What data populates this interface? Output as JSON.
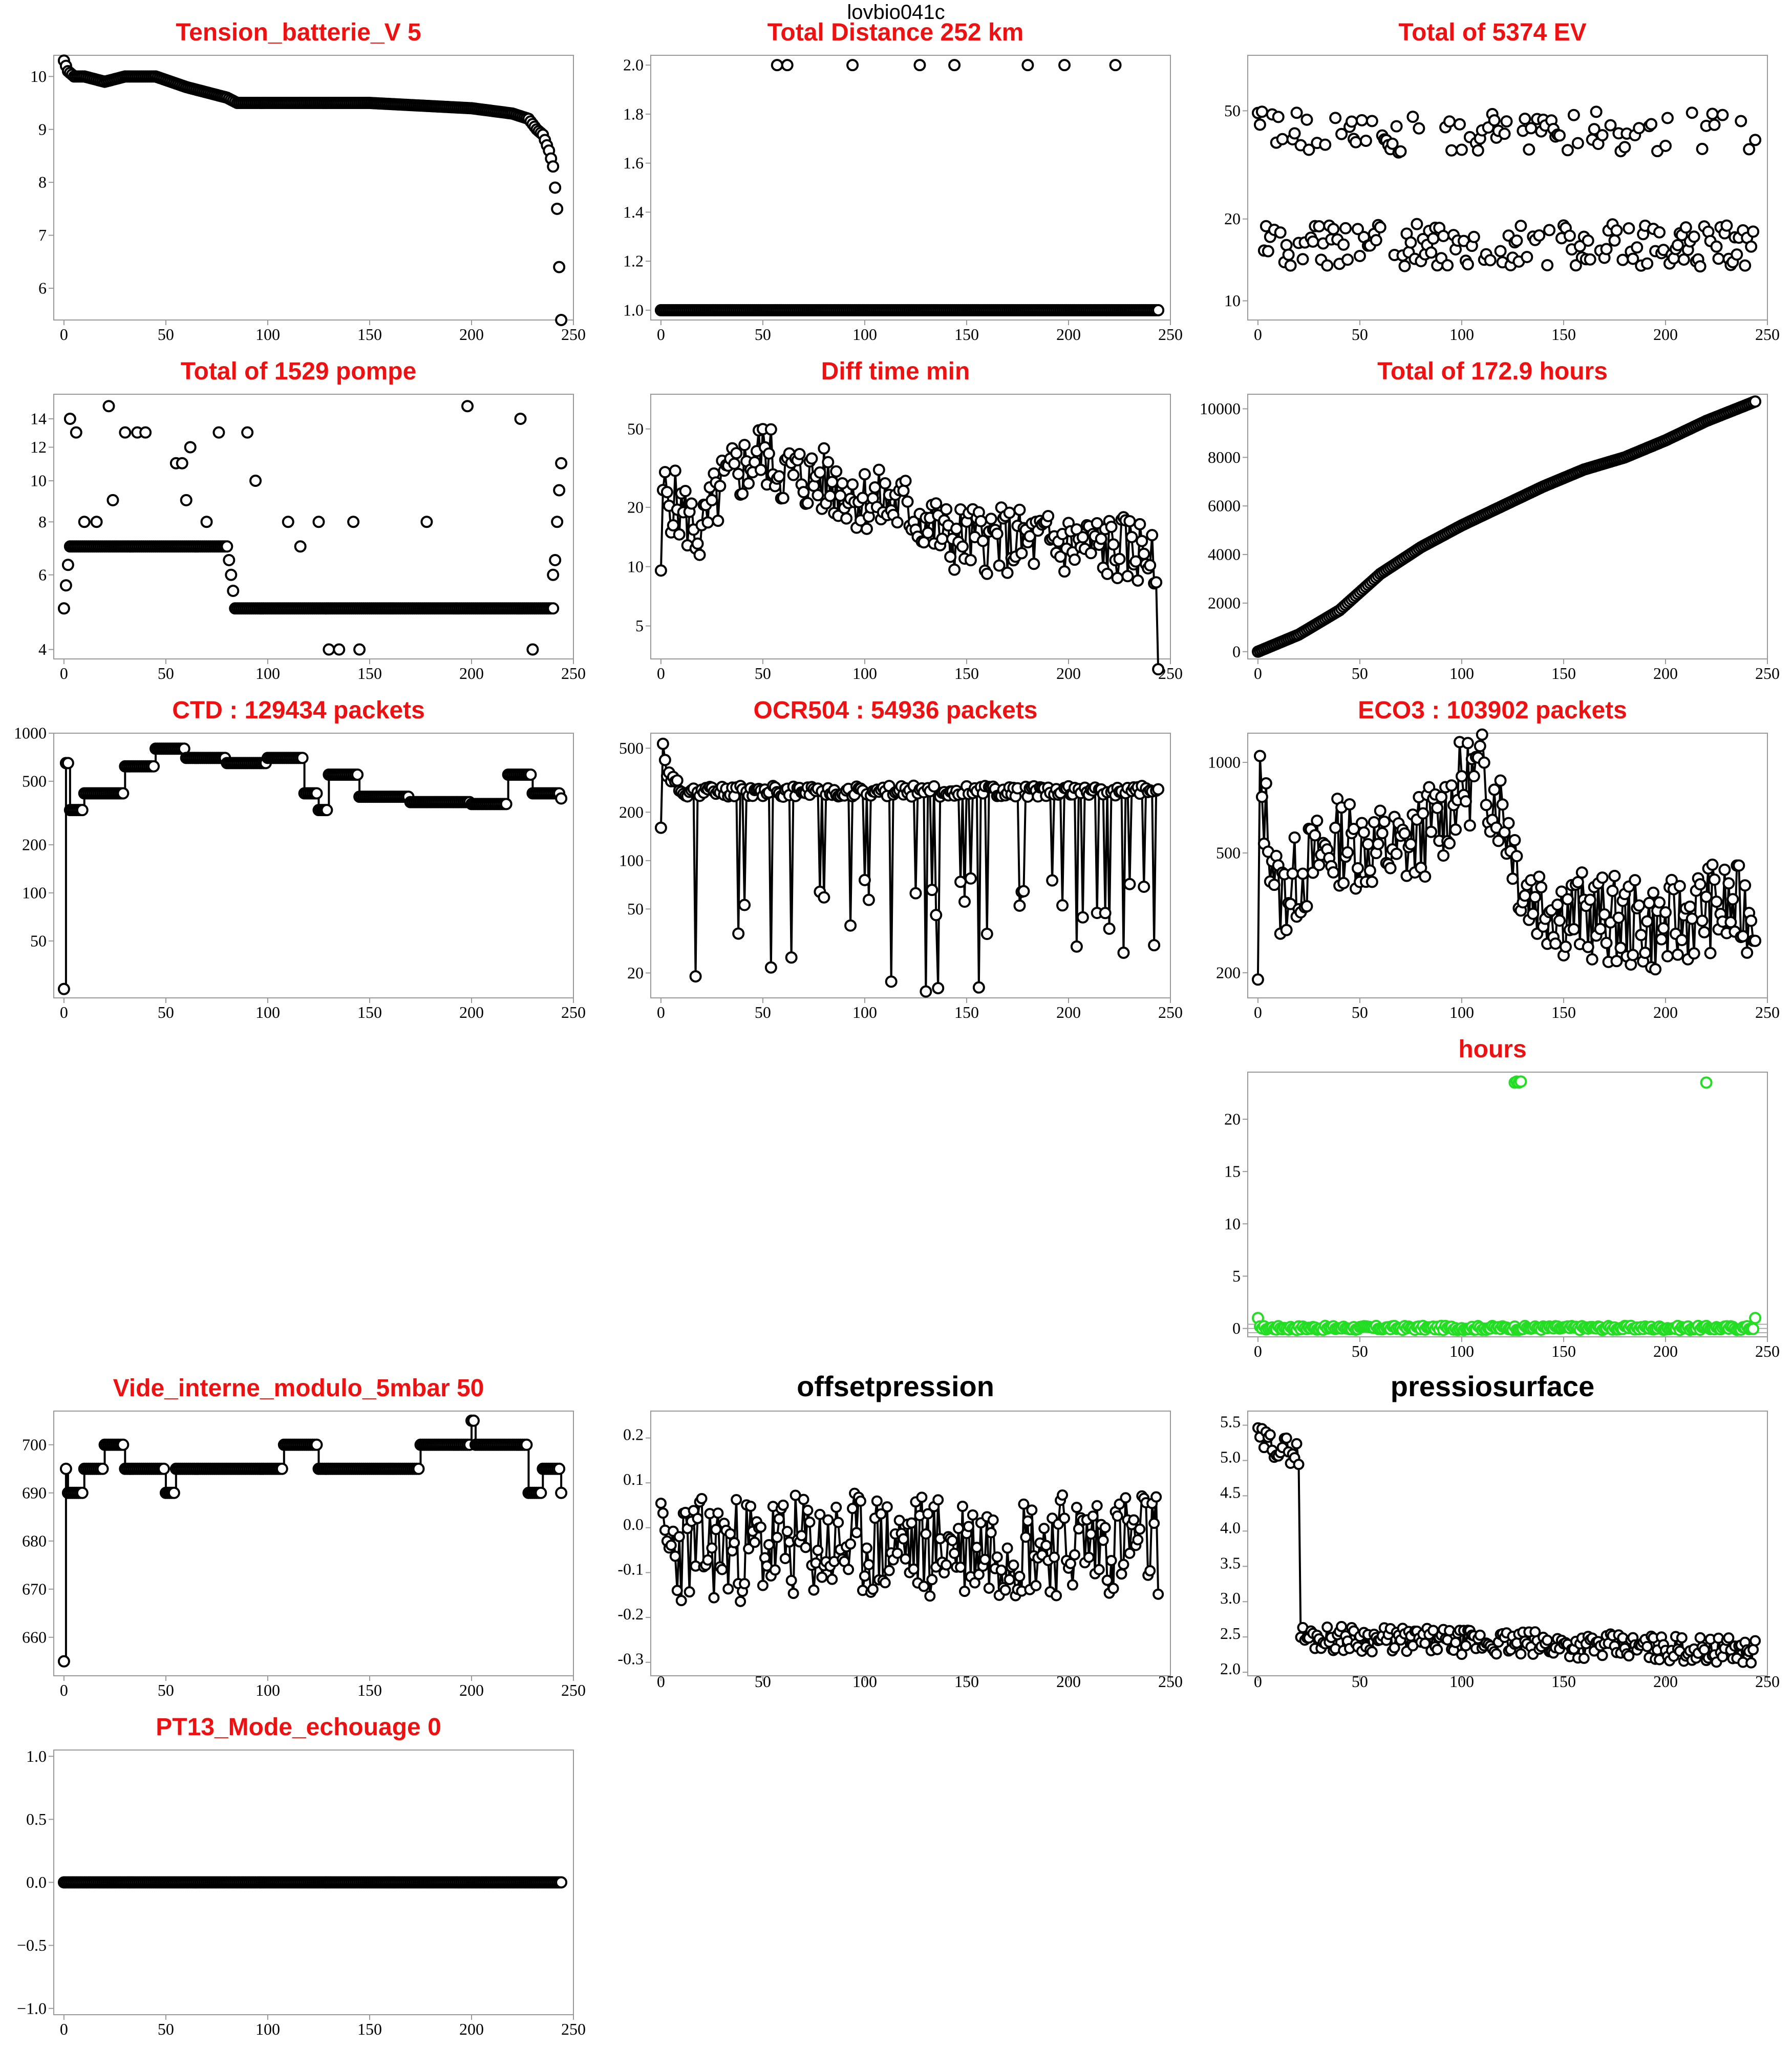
{
  "page": {
    "title": "lovbio041c"
  },
  "colors": {
    "title_red": "#ee1111",
    "title_black": "#000000",
    "series": "#000000",
    "highlight": "#22dd22",
    "ref_line": "#aaaaaa"
  },
  "chart_data": [
    {
      "id": "p1",
      "type": "line",
      "title": "Tension_batterie_V 5",
      "title_color": "#ee1111",
      "xlim": [
        -5,
        250
      ],
      "xticks": [
        0,
        50,
        100,
        150,
        200,
        250
      ],
      "ylim": [
        5.4,
        10.4
      ],
      "yscale": "linear",
      "yticks": [
        6,
        7,
        8,
        9,
        10
      ],
      "ytick_labels": [
        "6",
        "7",
        "8",
        "9",
        "10"
      ],
      "style": "points",
      "values_by_x": [
        [
          0,
          10.3
        ],
        [
          1,
          10.2
        ],
        [
          2,
          10.1
        ],
        [
          5,
          10.0
        ],
        [
          10,
          10.0
        ],
        [
          20,
          9.9
        ],
        [
          30,
          10.0
        ],
        [
          45,
          10.0
        ],
        [
          60,
          9.8
        ],
        [
          70,
          9.7
        ],
        [
          80,
          9.6
        ],
        [
          85,
          9.5
        ],
        [
          150,
          9.5
        ],
        [
          200,
          9.4
        ],
        [
          220,
          9.3
        ],
        [
          228,
          9.2
        ],
        [
          232,
          9.0
        ],
        [
          235,
          8.9
        ],
        [
          238,
          8.6
        ],
        [
          240,
          8.3
        ],
        [
          241,
          7.9
        ],
        [
          242,
          7.5
        ],
        [
          243,
          6.4
        ],
        [
          244,
          5.4
        ]
      ]
    },
    {
      "id": "p2",
      "type": "scatter",
      "title": "Total Distance  252  km",
      "title_color": "#ee1111",
      "xlim": [
        -5,
        250
      ],
      "xticks": [
        0,
        50,
        100,
        150,
        200,
        250
      ],
      "ylim": [
        0.96,
        2.04
      ],
      "yscale": "linear",
      "yticks": [
        1.0,
        1.2,
        1.4,
        1.6,
        1.8,
        2.0
      ],
      "ytick_labels": [
        "1.0",
        "1.2",
        "1.4",
        "1.6",
        "1.8",
        "2.0"
      ],
      "style": "points",
      "baseline": 1.0,
      "spikes": [
        [
          57,
          2
        ],
        [
          62,
          2
        ],
        [
          94,
          2
        ],
        [
          127,
          2
        ],
        [
          144,
          2
        ],
        [
          180,
          2
        ],
        [
          198,
          2
        ],
        [
          223,
          2
        ]
      ]
    },
    {
      "id": "p3",
      "type": "scatter",
      "title": "Total of  5374  EV",
      "title_color": "#ee1111",
      "xlim": [
        -5,
        250
      ],
      "xticks": [
        0,
        50,
        100,
        150,
        200,
        250
      ],
      "ylim": [
        8.5,
        80
      ],
      "yscale": "log",
      "yticks": [
        10,
        20,
        50
      ],
      "ytick_labels": [
        "10",
        "20",
        "50"
      ],
      "style": "points",
      "gen": {
        "mode": "bimodal",
        "low": 16,
        "high": 42,
        "spread": 0.18,
        "p_high": 0.4,
        "seed": 3
      }
    },
    {
      "id": "p4",
      "type": "scatter",
      "title": "Total of  1529  pompe",
      "title_color": "#ee1111",
      "xlim": [
        -5,
        250
      ],
      "xticks": [
        0,
        50,
        100,
        150,
        200,
        250
      ],
      "ylim": [
        3.8,
        16
      ],
      "yscale": "log",
      "yticks": [
        4,
        6,
        8,
        10,
        12,
        14
      ],
      "ytick_labels": [
        "4",
        "6",
        "8",
        "10",
        "12",
        "14"
      ],
      "style": "points",
      "values_by_x": [
        [
          0,
          5
        ],
        [
          3,
          7
        ],
        [
          30,
          7
        ],
        [
          40,
          7
        ],
        [
          60,
          7
        ],
        [
          80,
          7
        ],
        [
          84,
          5
        ],
        [
          120,
          5
        ],
        [
          140,
          5
        ],
        [
          160,
          5
        ],
        [
          200,
          5
        ],
        [
          240,
          5
        ],
        [
          244,
          11
        ]
      ],
      "extras": [
        [
          3,
          14
        ],
        [
          6,
          13
        ],
        [
          10,
          8
        ],
        [
          16,
          8
        ],
        [
          22,
          15
        ],
        [
          24,
          9
        ],
        [
          30,
          13
        ],
        [
          36,
          13
        ],
        [
          40,
          13
        ],
        [
          55,
          11
        ],
        [
          58,
          11
        ],
        [
          60,
          9
        ],
        [
          62,
          12
        ],
        [
          70,
          8
        ],
        [
          76,
          13
        ],
        [
          90,
          13
        ],
        [
          94,
          10
        ],
        [
          110,
          8
        ],
        [
          116,
          7
        ],
        [
          125,
          8
        ],
        [
          130,
          4
        ],
        [
          135,
          4
        ],
        [
          142,
          8
        ],
        [
          145,
          4
        ],
        [
          178,
          8
        ],
        [
          198,
          15
        ],
        [
          224,
          14
        ],
        [
          230,
          4
        ],
        [
          240,
          6
        ]
      ]
    },
    {
      "id": "p5",
      "type": "line",
      "title": "Diff time min",
      "title_color": "#ee1111",
      "xlim": [
        -5,
        250
      ],
      "xticks": [
        0,
        50,
        100,
        150,
        200,
        250
      ],
      "ylim": [
        3.4,
        75
      ],
      "yscale": "log",
      "yticks": [
        5,
        10,
        20,
        50
      ],
      "ytick_labels": [
        "5",
        "10",
        "20",
        "50"
      ],
      "style": "line",
      "gen": {
        "mode": "noisy",
        "anchors": [
          [
            0,
            7
          ],
          [
            1,
            24
          ],
          [
            20,
            14
          ],
          [
            30,
            25
          ],
          [
            50,
            38
          ],
          [
            60,
            30
          ],
          [
            80,
            27
          ],
          [
            100,
            22
          ],
          [
            120,
            20
          ],
          [
            140,
            14
          ],
          [
            200,
            13
          ],
          [
            240,
            12
          ],
          [
            244,
            3.5
          ]
        ],
        "spread": 0.4,
        "seed": 5
      }
    },
    {
      "id": "p6",
      "type": "line",
      "title": "Total of  172.9  hours",
      "title_color": "#ee1111",
      "xlim": [
        -5,
        250
      ],
      "xticks": [
        0,
        50,
        100,
        150,
        200,
        250
      ],
      "ylim": [
        -300,
        10600
      ],
      "yscale": "linear",
      "yticks": [
        0,
        2000,
        4000,
        6000,
        8000,
        10000
      ],
      "ytick_labels": [
        "0",
        "2000",
        "4000",
        "6000",
        "8000",
        "10000"
      ],
      "style": "points",
      "values_by_x": [
        [
          0,
          0
        ],
        [
          20,
          700
        ],
        [
          40,
          1700
        ],
        [
          60,
          3200
        ],
        [
          80,
          4300
        ],
        [
          100,
          5200
        ],
        [
          120,
          6000
        ],
        [
          140,
          6800
        ],
        [
          160,
          7500
        ],
        [
          180,
          8000
        ],
        [
          200,
          8700
        ],
        [
          220,
          9500
        ],
        [
          244,
          10300
        ]
      ]
    },
    {
      "id": "p7",
      "type": "line",
      "title": "CTD  : 129434  packets",
      "title_color": "#ee1111",
      "xlim": [
        -5,
        250
      ],
      "xticks": [
        0,
        50,
        100,
        150,
        200,
        250
      ],
      "ylim": [
        22,
        1000
      ],
      "yscale": "log",
      "yticks": [
        50,
        100,
        200,
        500,
        1000
      ],
      "ytick_labels": [
        "50",
        "100",
        "200",
        "500",
        "1000"
      ],
      "style": "steps",
      "gen": {
        "mode": "steps",
        "anchors": [
          [
            0,
            25
          ],
          [
            1,
            650
          ],
          [
            3,
            330
          ],
          [
            10,
            420
          ],
          [
            30,
            620
          ],
          [
            45,
            800
          ],
          [
            60,
            700
          ],
          [
            80,
            650
          ],
          [
            100,
            700
          ],
          [
            118,
            420
          ],
          [
            125,
            330
          ],
          [
            130,
            550
          ],
          [
            145,
            400
          ],
          [
            170,
            370
          ],
          [
            200,
            360
          ],
          [
            218,
            550
          ],
          [
            230,
            420
          ],
          [
            244,
            390
          ]
        ],
        "seed": 7
      }
    },
    {
      "id": "p8",
      "type": "line",
      "title": "OCR504  : 54936  packets",
      "title_color": "#ee1111",
      "xlim": [
        -5,
        250
      ],
      "xticks": [
        0,
        50,
        100,
        150,
        200,
        250
      ],
      "ylim": [
        14,
        620
      ],
      "yscale": "log",
      "yticks": [
        20,
        50,
        100,
        200,
        500
      ],
      "ytick_labels": [
        "20",
        "50",
        "100",
        "200",
        "500"
      ],
      "style": "line",
      "gen": {
        "mode": "baseline_dips",
        "anchors": [
          [
            0,
            150
          ],
          [
            1,
            550
          ],
          [
            3,
            350
          ],
          [
            10,
            270
          ],
          [
            244,
            270
          ]
        ],
        "spread": 0.08,
        "dip_prob": 0.15,
        "dip_range": [
          15,
          80
        ],
        "seed": 11
      }
    },
    {
      "id": "p9",
      "type": "line",
      "title": "ECO3  : 103902  packets",
      "title_color": "#ee1111",
      "xlim": [
        -5,
        250
      ],
      "xticks": [
        0,
        50,
        100,
        150,
        200,
        250
      ],
      "ylim": [
        165,
        1250
      ],
      "yscale": "log",
      "yticks": [
        200,
        500,
        1000
      ],
      "ytick_labels": [
        "200",
        "500",
        "1000"
      ],
      "style": "line",
      "gen": {
        "mode": "noisy",
        "anchors": [
          [
            0,
            180
          ],
          [
            1,
            800
          ],
          [
            10,
            350
          ],
          [
            40,
            550
          ],
          [
            70,
            500
          ],
          [
            90,
            650
          ],
          [
            100,
            850
          ],
          [
            110,
            900
          ],
          [
            120,
            700
          ],
          [
            130,
            380
          ],
          [
            150,
            320
          ],
          [
            170,
            300
          ],
          [
            200,
            280
          ],
          [
            220,
            330
          ],
          [
            244,
            320
          ]
        ],
        "spread": 0.35,
        "seed": 13
      }
    },
    {
      "id": "p10",
      "type": "scatter",
      "title": "hours",
      "title_color": "#ee1111",
      "xlim": [
        -5,
        250
      ],
      "xticks": [
        0,
        50,
        100,
        150,
        200,
        250
      ],
      "ylim": [
        -0.8,
        24.5
      ],
      "yscale": "linear",
      "yticks": [
        0,
        5,
        10,
        15,
        20
      ],
      "ytick_labels": [
        "0",
        "5",
        "10",
        "15",
        "20"
      ],
      "style": "points_color",
      "color": "#22dd22",
      "ref_lines": [
        -0.4,
        0.0,
        0.4
      ],
      "values_by_x": [
        [
          0,
          1.0
        ],
        [
          1,
          0.2
        ],
        [
          244,
          1.0
        ]
      ],
      "spikes": [
        [
          126,
          23.5
        ],
        [
          127,
          23.6
        ],
        [
          128,
          23.5
        ],
        [
          129,
          23.6
        ],
        [
          220,
          23.5
        ]
      ],
      "gen": {
        "mode": "flat",
        "level": 0.05,
        "spread": 0.2,
        "seed": 17
      }
    },
    {
      "id": "p11",
      "type": "line",
      "title": "Vide_interne_modulo_5mbar 50",
      "title_color": "#ee1111",
      "xlim": [
        -5,
        250
      ],
      "xticks": [
        0,
        50,
        100,
        150,
        200,
        250
      ],
      "ylim": [
        652,
        707
      ],
      "yscale": "linear",
      "yticks": [
        660,
        670,
        680,
        690,
        700
      ],
      "ytick_labels": [
        "660",
        "670",
        "680",
        "690",
        "700"
      ],
      "style": "steps",
      "gen": {
        "mode": "steps",
        "anchors": [
          [
            0,
            655
          ],
          [
            1,
            695
          ],
          [
            2,
            690
          ],
          [
            10,
            695
          ],
          [
            20,
            700
          ],
          [
            30,
            695
          ],
          [
            40,
            695
          ],
          [
            50,
            690
          ],
          [
            55,
            695
          ],
          [
            105,
            695
          ],
          [
            108,
            700
          ],
          [
            125,
            695
          ],
          [
            140,
            695
          ],
          [
            175,
            700
          ],
          [
            190,
            700
          ],
          [
            200,
            705
          ],
          [
            202,
            700
          ],
          [
            228,
            690
          ],
          [
            235,
            695
          ],
          [
            244,
            690
          ]
        ],
        "seed": 19
      }
    },
    {
      "id": "p12",
      "type": "line",
      "title": "offsetpression",
      "title_color": "#000000",
      "xlim": [
        -5,
        250
      ],
      "xticks": [
        0,
        50,
        100,
        150,
        200,
        250
      ],
      "ylim": [
        -0.33,
        0.26
      ],
      "yscale": "linear",
      "yticks": [
        -0.3,
        -0.2,
        -0.1,
        0.0,
        0.1,
        0.2
      ],
      "ytick_labels": [
        "-0.3",
        "-0.2",
        "-0.1",
        "0.0",
        "0.1",
        "0.2"
      ],
      "small_ticks": true,
      "style": "line",
      "gen": {
        "mode": "noisy_linear",
        "anchors": [
          [
            0,
            -0.05
          ],
          [
            244,
            -0.03
          ]
        ],
        "spread": 0.12,
        "seed": 23
      }
    },
    {
      "id": "p13",
      "type": "line",
      "title": "pressiosurface",
      "title_color": "#000000",
      "xlim": [
        -5,
        250
      ],
      "xticks": [
        0,
        50,
        100,
        150,
        200,
        250
      ],
      "ylim": [
        1.95,
        5.7
      ],
      "yscale": "linear",
      "yticks": [
        2.0,
        2.5,
        3.0,
        3.5,
        4.0,
        4.5,
        5.0,
        5.5
      ],
      "ytick_labels": [
        "2.0",
        "2.5",
        "3.0",
        "3.5",
        "4.0",
        "4.5",
        "5.0",
        "5.5"
      ],
      "small_ticks": true,
      "style": "line",
      "gen": {
        "mode": "noisy_linear",
        "anchors": [
          [
            0,
            5.3
          ],
          [
            20,
            5.1
          ],
          [
            21,
            2.5
          ],
          [
            244,
            2.3
          ]
        ],
        "spread": 0.18,
        "seed": 29
      }
    },
    {
      "id": "p14",
      "type": "line",
      "title": "PT13_Mode_echouage  0",
      "title_color": "#ee1111",
      "xlim": [
        -5,
        250
      ],
      "xticks": [
        0,
        50,
        100,
        150,
        200,
        250
      ],
      "ylim": [
        -1.05,
        1.05
      ],
      "yscale": "linear",
      "yticks": [
        -1.0,
        -0.5,
        0.0,
        0.5,
        1.0
      ],
      "ytick_labels": [
        "−1.0",
        "−0.5",
        "0.0",
        "0.5",
        "1.0"
      ],
      "style": "points",
      "values_by_x": [
        [
          0,
          0
        ],
        [
          244,
          0
        ]
      ]
    }
  ]
}
